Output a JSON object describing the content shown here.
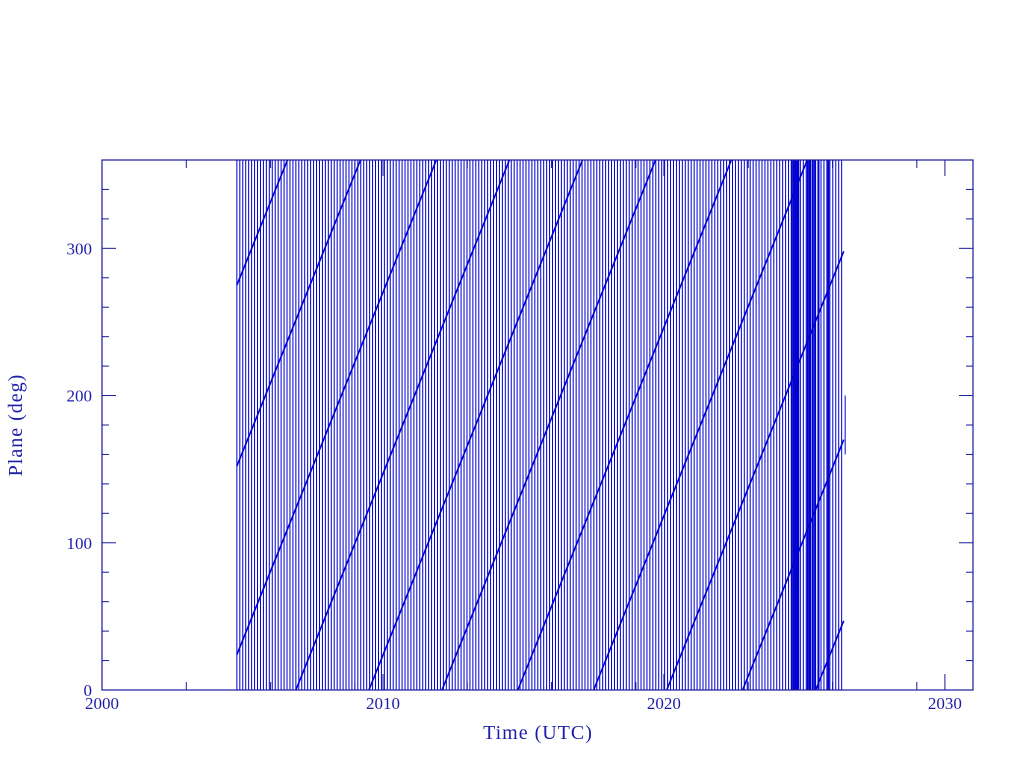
{
  "chart_data": {
    "type": "line",
    "title": "",
    "xlabel": "Time (UTC)",
    "ylabel": "Plane (deg)",
    "xlim": [
      2000,
      2031
    ],
    "ylim": [
      0,
      360
    ],
    "x_ticks": [
      2000,
      2010,
      2020,
      2030
    ],
    "x_tick_labels": [
      "2000",
      "2010",
      "2020",
      "2030"
    ],
    "x_minor_ticks": [
      2003,
      2006,
      2009,
      2013,
      2016,
      2019,
      2023,
      2026,
      2029
    ],
    "y_ticks": [
      0,
      100,
      200,
      300
    ],
    "y_tick_labels": [
      "0",
      "100",
      "200",
      "300"
    ],
    "y_minor_step": 20,
    "grid": false,
    "legend": "none",
    "series": [
      {
        "description_of_marks": "wrapped angle 0-360",
        "wrap_lines": {
          "from": 2004.8,
          "to": 2026.4,
          "every_years": 0.105,
          "y": [
            0,
            360
          ]
        },
        "extra_wraps_years": [
          2024.55,
          2024.62,
          2024.7,
          2024.78,
          2025.12,
          2025.2,
          2025.3,
          2025.38,
          2025.5,
          2025.85
        ],
        "drift_segments": [
          [
            2004.8,
            275,
            2006.6,
            360
          ],
          [
            2004.8,
            152,
            2009.2,
            360
          ],
          [
            2004.8,
            24,
            2011.9,
            360
          ],
          [
            2006.9,
            0,
            2014.5,
            360
          ],
          [
            2009.5,
            0,
            2017.1,
            360
          ],
          [
            2012.1,
            0,
            2019.7,
            360
          ],
          [
            2014.8,
            0,
            2022.4,
            360
          ],
          [
            2017.5,
            0,
            2025.1,
            360
          ],
          [
            2020.1,
            0,
            2026.4,
            298
          ],
          [
            2022.8,
            0,
            2026.4,
            170
          ],
          [
            2025.4,
            0,
            2026.4,
            47
          ]
        ],
        "tail_segment": [
          2026.45,
          160,
          2026.45,
          200
        ]
      }
    ],
    "colors": {
      "axis": "#1a1a9c",
      "line": "#0000d0",
      "text": "#1c1ca8"
    }
  }
}
